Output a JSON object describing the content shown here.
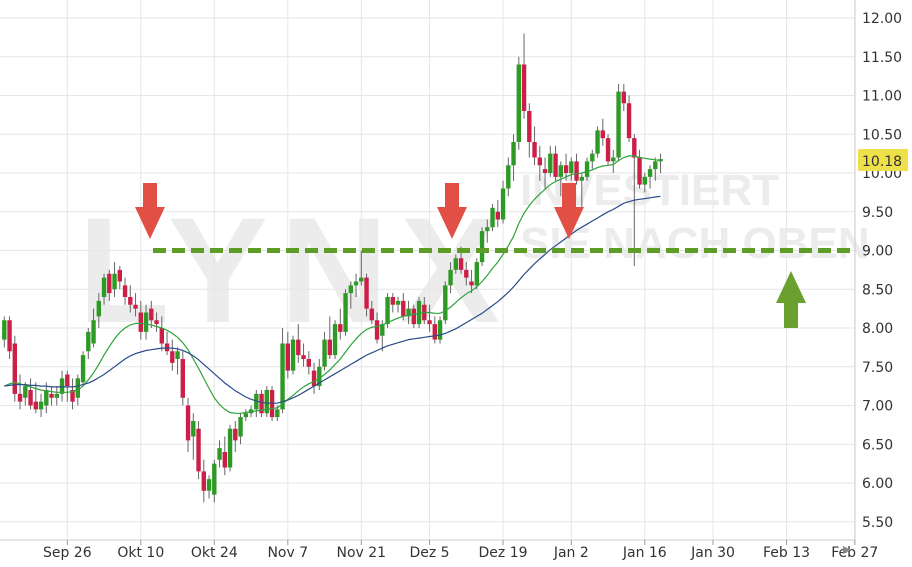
{
  "chart_data": {
    "type": "candlestick",
    "title": "",
    "xlabel": "",
    "ylabel": "",
    "ylim": [
      5.3,
      12.2
    ],
    "y_ticks": [
      "5.50",
      "6.00",
      "6.50",
      "7.00",
      "7.50",
      "8.00",
      "8.50",
      "9.00",
      "9.50",
      "10.00",
      "10.50",
      "11.00",
      "11.50",
      "12.00"
    ],
    "x_ticks": [
      "Sep 26",
      "Okt 10",
      "Okt 24",
      "Nov 7",
      "Nov 21",
      "Dez 5",
      "Dez 19",
      "Jan 2",
      "Jan 16",
      "Jan 30",
      "Feb 13",
      "Feb 27"
    ],
    "x_tick_index": [
      12,
      26,
      40,
      54,
      68,
      81,
      95,
      108,
      122,
      135,
      149,
      162
    ],
    "grid": true,
    "last_price": "10.18",
    "resistance_level": 9.0,
    "colors": {
      "up": "#2e9a26",
      "down": "#cc1f48",
      "ma_short": "#2fa33a",
      "ma_long": "#2c4c8a",
      "resistance": "#5e9c2a",
      "arrow_down": "#e25045",
      "arrow_up": "#6aa12e",
      "price_tag": "#ede04a"
    },
    "candles": [
      [
        7.85,
        8.15,
        7.75,
        8.1
      ],
      [
        8.1,
        8.15,
        7.6,
        7.7
      ],
      [
        7.8,
        7.9,
        7.05,
        7.15
      ],
      [
        7.15,
        7.4,
        6.95,
        7.05
      ],
      [
        7.1,
        7.3,
        7.0,
        7.25
      ],
      [
        7.2,
        7.35,
        6.95,
        7.0
      ],
      [
        7.05,
        7.3,
        6.9,
        6.95
      ],
      [
        6.95,
        7.15,
        6.85,
        7.05
      ],
      [
        7.0,
        7.3,
        6.9,
        7.2
      ],
      [
        7.15,
        7.25,
        7.0,
        7.1
      ],
      [
        7.1,
        7.25,
        7.0,
        7.15
      ],
      [
        7.15,
        7.45,
        7.05,
        7.35
      ],
      [
        7.4,
        7.45,
        7.05,
        7.25
      ],
      [
        7.2,
        7.35,
        6.95,
        7.05
      ],
      [
        7.1,
        7.4,
        7.0,
        7.35
      ],
      [
        7.3,
        7.7,
        7.25,
        7.65
      ],
      [
        7.7,
        8.0,
        7.6,
        7.95
      ],
      [
        7.8,
        8.25,
        7.75,
        8.1
      ],
      [
        8.15,
        8.45,
        8.0,
        8.35
      ],
      [
        8.4,
        8.7,
        8.3,
        8.65
      ],
      [
        8.7,
        8.75,
        8.35,
        8.45
      ],
      [
        8.5,
        8.85,
        8.4,
        8.7
      ],
      [
        8.75,
        8.8,
        8.5,
        8.6
      ],
      [
        8.55,
        8.65,
        8.3,
        8.4
      ],
      [
        8.4,
        8.55,
        8.2,
        8.3
      ],
      [
        8.3,
        8.45,
        8.15,
        8.25
      ],
      [
        8.2,
        8.35,
        7.85,
        7.95
      ],
      [
        7.95,
        8.3,
        7.85,
        8.2
      ],
      [
        8.25,
        8.35,
        8.0,
        8.1
      ],
      [
        8.1,
        8.2,
        7.95,
        8.05
      ],
      [
        8.0,
        8.15,
        7.7,
        7.8
      ],
      [
        7.8,
        7.95,
        7.65,
        7.7
      ],
      [
        7.7,
        7.85,
        7.45,
        7.55
      ],
      [
        7.6,
        7.75,
        7.4,
        7.7
      ],
      [
        7.6,
        7.7,
        7.0,
        7.1
      ],
      [
        7.0,
        7.1,
        6.4,
        6.55
      ],
      [
        6.6,
        6.9,
        6.3,
        6.8
      ],
      [
        6.7,
        6.8,
        6.05,
        6.15
      ],
      [
        6.15,
        6.3,
        5.75,
        5.9
      ],
      [
        5.9,
        6.1,
        5.8,
        6.05
      ],
      [
        5.85,
        6.3,
        5.75,
        6.25
      ],
      [
        6.3,
        6.55,
        6.2,
        6.45
      ],
      [
        6.4,
        6.6,
        6.1,
        6.2
      ],
      [
        6.2,
        6.75,
        6.15,
        6.7
      ],
      [
        6.7,
        6.8,
        6.4,
        6.55
      ],
      [
        6.6,
        6.9,
        6.5,
        6.85
      ],
      [
        6.85,
        6.95,
        6.8,
        6.9
      ],
      [
        6.9,
        7.0,
        6.85,
        6.95
      ],
      [
        6.95,
        7.2,
        6.85,
        7.15
      ],
      [
        7.15,
        7.2,
        6.85,
        6.9
      ],
      [
        6.9,
        7.25,
        6.85,
        7.2
      ],
      [
        7.2,
        7.25,
        6.8,
        6.85
      ],
      [
        6.85,
        7.0,
        6.8,
        6.95
      ],
      [
        6.95,
        8.0,
        6.9,
        7.8
      ],
      [
        7.8,
        7.95,
        7.35,
        7.45
      ],
      [
        7.45,
        7.9,
        7.4,
        7.85
      ],
      [
        7.85,
        8.05,
        7.55,
        7.65
      ],
      [
        7.65,
        7.8,
        7.5,
        7.6
      ],
      [
        7.6,
        7.7,
        7.4,
        7.5
      ],
      [
        7.45,
        7.55,
        7.15,
        7.25
      ],
      [
        7.25,
        7.6,
        7.2,
        7.5
      ],
      [
        7.5,
        7.95,
        7.45,
        7.85
      ],
      [
        7.85,
        8.15,
        7.6,
        7.65
      ],
      [
        7.65,
        8.1,
        7.6,
        8.05
      ],
      [
        8.05,
        8.25,
        7.85,
        7.95
      ],
      [
        7.95,
        8.5,
        7.9,
        8.45
      ],
      [
        8.45,
        8.6,
        8.25,
        8.55
      ],
      [
        8.55,
        8.7,
        8.4,
        8.6
      ],
      [
        8.6,
        9.0,
        8.55,
        8.65
      ],
      [
        8.65,
        8.7,
        8.15,
        8.25
      ],
      [
        8.25,
        8.35,
        8.05,
        8.1
      ],
      [
        8.1,
        8.2,
        7.8,
        7.85
      ],
      [
        7.9,
        8.1,
        7.7,
        8.05
      ],
      [
        8.05,
        8.45,
        8.0,
        8.4
      ],
      [
        8.4,
        8.45,
        8.2,
        8.3
      ],
      [
        8.3,
        8.4,
        8.2,
        8.35
      ],
      [
        8.35,
        8.45,
        8.1,
        8.15
      ],
      [
        8.15,
        8.35,
        8.05,
        8.25
      ],
      [
        8.25,
        8.3,
        8.0,
        8.05
      ],
      [
        8.05,
        8.4,
        8.0,
        8.35
      ],
      [
        8.3,
        8.4,
        8.05,
        8.1
      ],
      [
        8.1,
        8.3,
        7.95,
        8.05
      ],
      [
        8.05,
        8.15,
        7.8,
        7.85
      ],
      [
        7.85,
        8.15,
        7.8,
        8.1
      ],
      [
        8.1,
        8.6,
        8.05,
        8.55
      ],
      [
        8.55,
        8.85,
        8.45,
        8.75
      ],
      [
        8.75,
        8.95,
        8.7,
        8.9
      ],
      [
        8.9,
        9.05,
        8.7,
        8.75
      ],
      [
        8.75,
        8.85,
        8.55,
        8.65
      ],
      [
        8.6,
        8.75,
        8.45,
        8.55
      ],
      [
        8.55,
        8.9,
        8.5,
        8.85
      ],
      [
        8.85,
        9.3,
        8.8,
        9.25
      ],
      [
        9.25,
        9.4,
        9.1,
        9.3
      ],
      [
        9.3,
        9.6,
        9.25,
        9.55
      ],
      [
        9.5,
        9.65,
        9.3,
        9.4
      ],
      [
        9.4,
        9.9,
        9.35,
        9.8
      ],
      [
        9.8,
        10.2,
        9.7,
        10.1
      ],
      [
        10.1,
        10.5,
        9.9,
        10.4
      ],
      [
        10.4,
        11.5,
        10.3,
        11.4
      ],
      [
        11.4,
        11.8,
        10.7,
        10.8
      ],
      [
        10.8,
        10.9,
        10.2,
        10.4
      ],
      [
        10.4,
        10.6,
        10.1,
        10.2
      ],
      [
        10.2,
        10.35,
        9.9,
        10.1
      ],
      [
        10.05,
        10.2,
        9.8,
        10.0
      ],
      [
        10.0,
        10.35,
        9.95,
        10.25
      ],
      [
        10.25,
        10.35,
        9.9,
        9.95
      ],
      [
        9.95,
        10.15,
        9.7,
        10.1
      ],
      [
        10.1,
        10.25,
        9.9,
        10.0
      ],
      [
        10.0,
        10.2,
        9.9,
        10.15
      ],
      [
        10.15,
        10.25,
        9.85,
        9.9
      ],
      [
        9.9,
        10.0,
        9.55,
        9.95
      ],
      [
        9.95,
        10.2,
        9.9,
        10.15
      ],
      [
        10.15,
        10.3,
        10.05,
        10.25
      ],
      [
        10.25,
        10.6,
        10.2,
        10.55
      ],
      [
        10.55,
        10.7,
        10.35,
        10.45
      ],
      [
        10.45,
        10.5,
        10.1,
        10.15
      ],
      [
        10.15,
        10.3,
        10.0,
        10.2
      ],
      [
        10.2,
        11.15,
        10.15,
        11.05
      ],
      [
        11.05,
        11.15,
        10.8,
        10.9
      ],
      [
        10.9,
        11.0,
        10.4,
        10.45
      ],
      [
        10.45,
        10.5,
        8.8,
        10.2
      ],
      [
        10.2,
        10.3,
        9.8,
        9.85
      ],
      [
        9.85,
        10.0,
        9.75,
        9.95
      ],
      [
        9.95,
        10.1,
        9.8,
        10.05
      ],
      [
        10.05,
        10.2,
        9.9,
        10.15
      ],
      [
        10.15,
        10.25,
        10.0,
        10.18
      ]
    ],
    "series": [
      {
        "values": [
          7.25,
          7.28,
          7.3,
          7.28,
          7.26,
          7.24,
          7.22,
          7.2,
          7.19,
          7.18,
          7.17,
          7.17,
          7.17,
          7.18,
          7.2,
          7.25,
          7.33,
          7.42,
          7.53,
          7.65,
          7.76,
          7.86,
          7.94,
          8.0,
          8.04,
          8.06,
          8.06,
          8.05,
          8.04,
          8.02,
          8.0,
          7.97,
          7.93,
          7.88,
          7.81,
          7.72,
          7.6,
          7.48,
          7.35,
          7.22,
          7.1,
          7.01,
          6.95,
          6.91,
          6.9,
          6.9,
          6.91,
          6.92,
          6.93,
          6.94,
          6.95,
          6.96,
          6.97,
          7.02,
          7.08,
          7.13,
          7.19,
          7.24,
          7.28,
          7.31,
          7.35,
          7.4,
          7.46,
          7.53,
          7.6,
          7.69,
          7.78,
          7.86,
          7.93,
          7.98,
          8.01,
          8.02,
          8.04,
          8.07,
          8.1,
          8.13,
          8.15,
          8.17,
          8.18,
          8.19,
          8.2,
          8.2,
          8.19,
          8.19,
          8.22,
          8.27,
          8.33,
          8.39,
          8.44,
          8.48,
          8.53,
          8.6,
          8.68,
          8.77,
          8.85,
          8.95,
          9.06,
          9.18,
          9.35,
          9.48,
          9.58,
          9.66,
          9.73,
          9.79,
          9.85,
          9.89,
          9.92,
          9.95,
          9.98,
          9.99,
          10.0,
          10.02,
          10.04,
          10.07,
          10.09,
          10.1,
          10.11,
          10.16,
          10.2,
          10.22,
          10.22,
          10.2,
          10.19,
          10.18,
          10.17,
          10.16
        ]
      },
      {
        "values": [
          7.25,
          7.26,
          7.27,
          7.27,
          7.27,
          7.26,
          7.26,
          7.25,
          7.25,
          7.24,
          7.24,
          7.24,
          7.24,
          7.24,
          7.25,
          7.27,
          7.29,
          7.32,
          7.36,
          7.4,
          7.45,
          7.5,
          7.55,
          7.6,
          7.64,
          7.67,
          7.69,
          7.71,
          7.72,
          7.73,
          7.74,
          7.74,
          7.74,
          7.73,
          7.71,
          7.68,
          7.64,
          7.59,
          7.53,
          7.47,
          7.41,
          7.35,
          7.29,
          7.24,
          7.19,
          7.15,
          7.11,
          7.08,
          7.06,
          7.04,
          7.03,
          7.03,
          7.03,
          7.05,
          7.07,
          7.1,
          7.13,
          7.17,
          7.21,
          7.25,
          7.29,
          7.33,
          7.37,
          7.41,
          7.45,
          7.49,
          7.53,
          7.57,
          7.61,
          7.65,
          7.68,
          7.71,
          7.74,
          7.77,
          7.79,
          7.81,
          7.83,
          7.85,
          7.86,
          7.87,
          7.88,
          7.89,
          7.9,
          7.91,
          7.93,
          7.96,
          7.99,
          8.03,
          8.07,
          8.11,
          8.15,
          8.19,
          8.24,
          8.29,
          8.34,
          8.4,
          8.46,
          8.53,
          8.61,
          8.69,
          8.76,
          8.83,
          8.89,
          8.95,
          9.01,
          9.06,
          9.11,
          9.16,
          9.21,
          9.26,
          9.3,
          9.34,
          9.38,
          9.42,
          9.46,
          9.5,
          9.53,
          9.57,
          9.61,
          9.63,
          9.65,
          9.66,
          9.67,
          9.68,
          9.69,
          9.7
        ]
      }
    ]
  }
}
